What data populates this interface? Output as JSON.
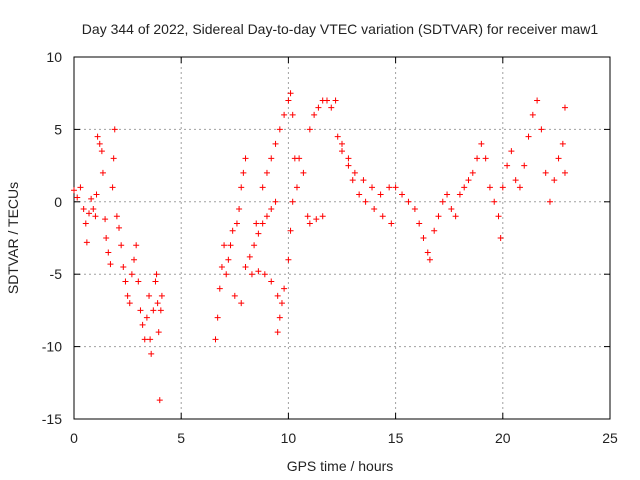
{
  "chart_data": {
    "type": "scatter",
    "title": "Day 344 of 2022, Sidereal Day-to-day VTEC variation (SDTVAR) for receiver maw1",
    "xlabel": "GPS time / hours",
    "ylabel": "SDTVAR / TECUs",
    "xlim": [
      0,
      25
    ],
    "ylim": [
      -15,
      10
    ],
    "xticks": [
      "0",
      "5",
      "10",
      "15",
      "20",
      "25"
    ],
    "yticks": [
      "10",
      "5",
      "0",
      "-5",
      "-10",
      "-15"
    ],
    "grid": true,
    "marker": "plus",
    "series": [
      {
        "name": "SDTVAR",
        "color": "#ff0000",
        "points": [
          [
            0.0,
            0.8
          ],
          [
            0.15,
            0.3
          ],
          [
            0.3,
            1.0
          ],
          [
            0.45,
            -0.5
          ],
          [
            0.55,
            -1.5
          ],
          [
            0.6,
            -2.8
          ],
          [
            0.7,
            -0.8
          ],
          [
            0.8,
            0.2
          ],
          [
            0.9,
            -0.5
          ],
          [
            1.0,
            -1.0
          ],
          [
            1.05,
            0.5
          ],
          [
            1.1,
            4.5
          ],
          [
            1.2,
            4.0
          ],
          [
            1.3,
            3.5
          ],
          [
            1.35,
            2.0
          ],
          [
            1.45,
            -1.2
          ],
          [
            1.5,
            -2.5
          ],
          [
            1.6,
            -3.5
          ],
          [
            1.7,
            -4.3
          ],
          [
            1.8,
            1.0
          ],
          [
            1.85,
            3.0
          ],
          [
            1.9,
            5.0
          ],
          [
            2.0,
            -1.0
          ],
          [
            2.1,
            -1.8
          ],
          [
            2.2,
            -3.0
          ],
          [
            2.3,
            -4.5
          ],
          [
            2.4,
            -5.5
          ],
          [
            2.5,
            -6.5
          ],
          [
            2.6,
            -7.0
          ],
          [
            2.7,
            -5.0
          ],
          [
            2.8,
            -4.0
          ],
          [
            2.9,
            -3.0
          ],
          [
            3.0,
            -5.5
          ],
          [
            3.1,
            -7.5
          ],
          [
            3.2,
            -8.5
          ],
          [
            3.3,
            -9.5
          ],
          [
            3.4,
            -8.0
          ],
          [
            3.5,
            -6.5
          ],
          [
            3.55,
            -9.5
          ],
          [
            3.6,
            -10.5
          ],
          [
            3.7,
            -7.5
          ],
          [
            3.8,
            -5.5
          ],
          [
            3.85,
            -5.0
          ],
          [
            3.9,
            -7.0
          ],
          [
            3.95,
            -9.0
          ],
          [
            4.0,
            -13.7
          ],
          [
            4.05,
            -7.5
          ],
          [
            4.1,
            -6.5
          ],
          [
            6.6,
            -9.5
          ],
          [
            6.7,
            -8.0
          ],
          [
            6.8,
            -6.0
          ],
          [
            6.9,
            -4.5
          ],
          [
            7.0,
            -3.0
          ],
          [
            7.1,
            -5.0
          ],
          [
            7.2,
            -4.0
          ],
          [
            7.3,
            -3.0
          ],
          [
            7.4,
            -2.0
          ],
          [
            7.5,
            -6.5
          ],
          [
            7.6,
            -1.5
          ],
          [
            7.7,
            -0.5
          ],
          [
            7.8,
            1.0
          ],
          [
            7.9,
            2.0
          ],
          [
            8.0,
            3.0
          ],
          [
            7.8,
            -7.0
          ],
          [
            8.0,
            -4.5
          ],
          [
            8.2,
            -3.8
          ],
          [
            8.4,
            -3.0
          ],
          [
            8.6,
            -2.2
          ],
          [
            8.8,
            -1.5
          ],
          [
            9.0,
            -1.0
          ],
          [
            9.2,
            -0.5
          ],
          [
            9.4,
            0.0
          ],
          [
            8.3,
            -5.0
          ],
          [
            8.6,
            -4.8
          ],
          [
            8.9,
            -5.0
          ],
          [
            9.2,
            -5.5
          ],
          [
            9.5,
            -6.5
          ],
          [
            8.5,
            -1.5
          ],
          [
            8.8,
            1.0
          ],
          [
            9.0,
            2.0
          ],
          [
            9.2,
            3.0
          ],
          [
            9.4,
            4.0
          ],
          [
            9.6,
            5.0
          ],
          [
            9.8,
            6.0
          ],
          [
            10.0,
            7.0
          ],
          [
            10.1,
            7.5
          ],
          [
            10.2,
            6.0
          ],
          [
            10.3,
            3.0
          ],
          [
            10.4,
            1.0
          ],
          [
            9.5,
            -9.0
          ],
          [
            9.6,
            -8.0
          ],
          [
            9.7,
            -7.0
          ],
          [
            9.8,
            -6.0
          ],
          [
            10.0,
            -4.0
          ],
          [
            10.1,
            -2.0
          ],
          [
            10.2,
            0.0
          ],
          [
            10.5,
            3.0
          ],
          [
            10.7,
            2.0
          ],
          [
            10.9,
            -1.0
          ],
          [
            11.0,
            -1.5
          ],
          [
            11.3,
            -1.2
          ],
          [
            11.6,
            -1.0
          ],
          [
            11.0,
            5.0
          ],
          [
            11.2,
            6.0
          ],
          [
            11.4,
            6.5
          ],
          [
            11.6,
            7.0
          ],
          [
            11.8,
            7.0
          ],
          [
            12.0,
            6.5
          ],
          [
            12.2,
            7.0
          ],
          [
            12.3,
            4.5
          ],
          [
            12.5,
            3.5
          ],
          [
            12.8,
            2.5
          ],
          [
            13.0,
            1.5
          ],
          [
            13.3,
            0.5
          ],
          [
            13.6,
            0.0
          ],
          [
            14.0,
            -0.5
          ],
          [
            14.4,
            -1.0
          ],
          [
            14.8,
            -1.5
          ],
          [
            12.5,
            4.0
          ],
          [
            12.8,
            3.0
          ],
          [
            13.1,
            2.0
          ],
          [
            13.5,
            1.5
          ],
          [
            13.9,
            1.0
          ],
          [
            14.3,
            0.5
          ],
          [
            14.7,
            1.0
          ],
          [
            15.0,
            1.0
          ],
          [
            15.3,
            0.5
          ],
          [
            15.6,
            0.0
          ],
          [
            15.9,
            -0.5
          ],
          [
            16.1,
            -1.5
          ],
          [
            16.3,
            -2.5
          ],
          [
            16.5,
            -3.5
          ],
          [
            16.6,
            -4.0
          ],
          [
            16.8,
            -2.0
          ],
          [
            17.0,
            -1.0
          ],
          [
            17.2,
            0.0
          ],
          [
            17.4,
            0.5
          ],
          [
            17.6,
            -0.5
          ],
          [
            17.8,
            -1.0
          ],
          [
            18.0,
            0.5
          ],
          [
            18.2,
            1.0
          ],
          [
            18.4,
            1.5
          ],
          [
            18.6,
            2.0
          ],
          [
            18.8,
            3.0
          ],
          [
            19.0,
            4.0
          ],
          [
            19.2,
            3.0
          ],
          [
            19.4,
            1.0
          ],
          [
            19.6,
            0.0
          ],
          [
            19.8,
            -1.0
          ],
          [
            19.9,
            -2.5
          ],
          [
            20.0,
            1.0
          ],
          [
            20.2,
            2.5
          ],
          [
            20.4,
            3.5
          ],
          [
            20.6,
            1.5
          ],
          [
            20.8,
            1.0
          ],
          [
            21.0,
            2.5
          ],
          [
            21.2,
            4.5
          ],
          [
            21.4,
            6.0
          ],
          [
            21.6,
            7.0
          ],
          [
            21.8,
            5.0
          ],
          [
            22.0,
            2.0
          ],
          [
            22.2,
            0.0
          ],
          [
            22.4,
            1.5
          ],
          [
            22.6,
            3.0
          ],
          [
            22.8,
            4.0
          ],
          [
            22.9,
            6.5
          ],
          [
            22.9,
            2.0
          ]
        ]
      }
    ]
  }
}
